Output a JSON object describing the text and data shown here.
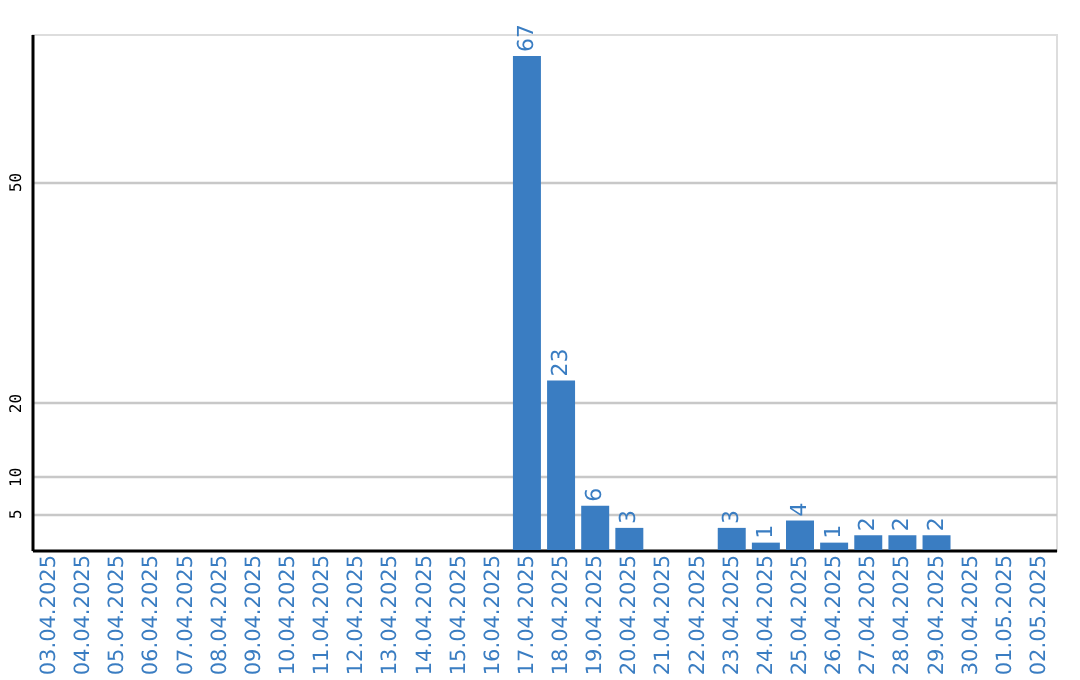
{
  "chart_data": {
    "type": "bar",
    "categories": [
      "03.04.2025",
      "04.04.2025",
      "05.04.2025",
      "06.04.2025",
      "07.04.2025",
      "08.04.2025",
      "09.04.2025",
      "10.04.2025",
      "11.04.2025",
      "12.04.2025",
      "13.04.2025",
      "14.04.2025",
      "15.04.2025",
      "16.04.2025",
      "17.04.2025",
      "18.04.2025",
      "19.04.2025",
      "20.04.2025",
      "21.04.2025",
      "22.04.2025",
      "23.04.2025",
      "24.04.2025",
      "25.04.2025",
      "26.04.2025",
      "27.04.2025",
      "28.04.2025",
      "29.04.2025",
      "30.04.2025",
      "01.05.2025",
      "02.05.2025"
    ],
    "values": [
      null,
      null,
      null,
      null,
      null,
      null,
      null,
      null,
      null,
      null,
      null,
      null,
      null,
      null,
      67,
      23,
      6,
      3,
      null,
      null,
      3,
      1,
      4,
      1,
      2,
      2,
      2,
      null,
      null,
      null
    ],
    "color": "#3a7dc2",
    "ylim": [
      0,
      70
    ],
    "yticks": [
      5,
      10,
      20,
      50
    ],
    "grid": "y",
    "data_labels": true
  }
}
